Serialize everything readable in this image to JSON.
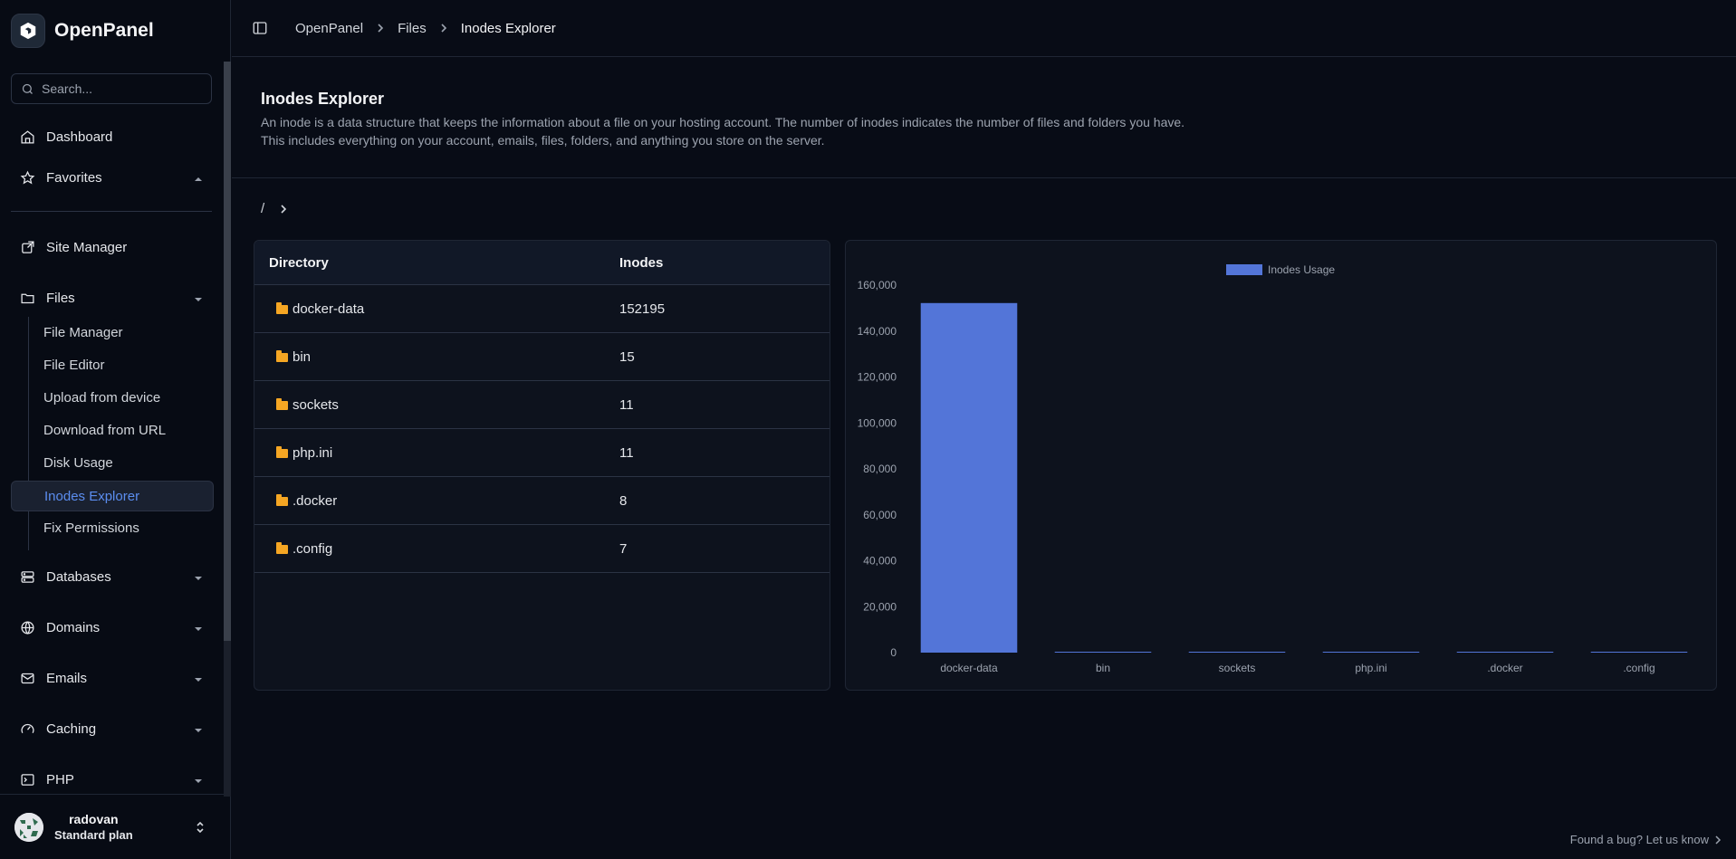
{
  "app": {
    "name": "OpenPanel"
  },
  "search": {
    "placeholder": "Search..."
  },
  "nav": {
    "dashboard": "Dashboard",
    "favorites": "Favorites",
    "site_manager": "Site Manager",
    "files": "Files",
    "files_sub": [
      "File Manager",
      "File Editor",
      "Upload from device",
      "Download from URL",
      "Disk Usage",
      "Inodes Explorer",
      "Fix Permissions"
    ],
    "active_sub": "Inodes Explorer",
    "databases": "Databases",
    "domains": "Domains",
    "emails": "Emails",
    "caching": "Caching",
    "php": "PHP"
  },
  "user": {
    "name": "radovan",
    "plan": "Standard plan"
  },
  "breadcrumb": [
    "OpenPanel",
    "Files",
    "Inodes Explorer"
  ],
  "page": {
    "title": "Inodes Explorer",
    "desc_line1": "An inode is a data structure that keeps the information about a file on your hosting account. The number of inodes indicates the number of files and folders you have.",
    "desc_line2": "This includes everything on your account, emails, files, folders, and anything you store on the server."
  },
  "path": {
    "root": "/"
  },
  "table": {
    "headers": [
      "Directory",
      "Inodes"
    ],
    "rows": [
      {
        "name": "docker-data",
        "inodes": "152195"
      },
      {
        "name": "bin",
        "inodes": "15"
      },
      {
        "name": "sockets",
        "inodes": "11"
      },
      {
        "name": "php.ini",
        "inodes": "11"
      },
      {
        "name": ".docker",
        "inodes": "8"
      },
      {
        "name": ".config",
        "inodes": "7"
      }
    ]
  },
  "chart_data": {
    "type": "bar",
    "categories": [
      "docker-data",
      "bin",
      "sockets",
      "php.ini",
      ".docker",
      ".config"
    ],
    "series": [
      {
        "name": "Inodes Usage",
        "values": [
          152195,
          15,
          11,
          11,
          8,
          7
        ],
        "color": "#5375d8"
      }
    ],
    "ylim": [
      0,
      160000
    ],
    "yticks": [
      "0",
      "20,000",
      "40,000",
      "60,000",
      "80,000",
      "100,000",
      "120,000",
      "140,000",
      "160,000"
    ],
    "legend": "top-center",
    "grid": false
  },
  "footer": {
    "bug_text": "Found a bug? Let us know"
  },
  "colors": {
    "accent": "#5b8def",
    "folder": "#f5a623",
    "bar": "#5375d8"
  }
}
